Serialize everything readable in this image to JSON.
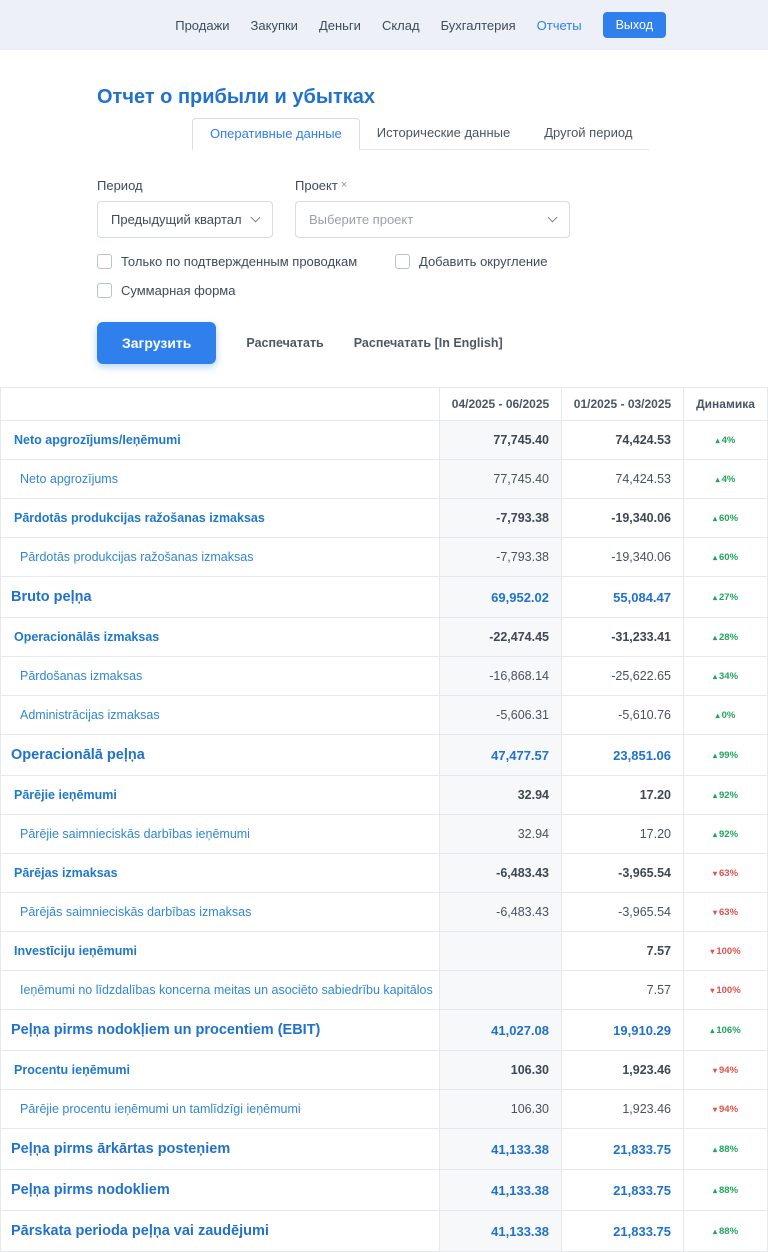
{
  "colors": {
    "accent": "#2f80ed",
    "title-blue": "#2072cc",
    "green": "#21a45d",
    "red": "#e2504a"
  },
  "nav": {
    "items": [
      {
        "label": "Продажи"
      },
      {
        "label": "Закупки"
      },
      {
        "label": "Деньги"
      },
      {
        "label": "Склад"
      },
      {
        "label": "Бухгалтерия"
      },
      {
        "label": "Отчеты"
      }
    ],
    "logout_label": "Выход"
  },
  "page": {
    "title": "Отчет о прибыли и убытках"
  },
  "tabs": [
    {
      "label": "Оперативные данные",
      "active": true
    },
    {
      "label": "Исторические данные",
      "active": false
    },
    {
      "label": "Другой период",
      "active": false
    }
  ],
  "filters": {
    "period_label": "Период",
    "period_value": "Предыдущий квартал",
    "project_label": "Проект",
    "project_clear": "×",
    "project_placeholder": "Выберите проект",
    "checkboxes": [
      {
        "label": "Только по подтвержденным проводкам",
        "checked": false
      },
      {
        "label": "Добавить округление",
        "checked": false
      },
      {
        "label": "Суммарная форма",
        "checked": false
      }
    ],
    "load_button": "Загрузить",
    "print_link": "Распечатать",
    "print_en_link": "Распечатать [In English]"
  },
  "table": {
    "headers": [
      "",
      "04/2025 - 06/2025",
      "01/2025 - 03/2025",
      "Динамика"
    ],
    "rows": [
      {
        "label": "Neto apgrozījums/Ieņēmumi",
        "level": "group",
        "col1": "77,745.40",
        "col2": "74,424.53",
        "trend": "4%",
        "dir": "up"
      },
      {
        "label": "Neto apgrozījums",
        "level": "sub",
        "col1": "77,745.40",
        "col2": "74,424.53",
        "trend": "4%",
        "dir": "up"
      },
      {
        "label": "Pārdotās produkcijas ražošanas izmaksas",
        "level": "group",
        "col1": "-7,793.38",
        "col2": "-19,340.06",
        "trend": "60%",
        "dir": "up"
      },
      {
        "label": "Pārdotās produkcijas ražošanas izmaksas",
        "level": "sub",
        "col1": "-7,793.38",
        "col2": "-19,340.06",
        "trend": "60%",
        "dir": "up"
      },
      {
        "label": "Bruto peļņa",
        "level": "total",
        "col1": "69,952.02",
        "col2": "55,084.47",
        "trend": "27%",
        "dir": "up"
      },
      {
        "label": "Operacionālās izmaksas",
        "level": "group",
        "col1": "-22,474.45",
        "col2": "-31,233.41",
        "trend": "28%",
        "dir": "up"
      },
      {
        "label": "Pārdošanas izmaksas",
        "level": "sub",
        "col1": "-16,868.14",
        "col2": "-25,622.65",
        "trend": "34%",
        "dir": "up"
      },
      {
        "label": "Administrācijas izmaksas",
        "level": "sub",
        "col1": "-5,606.31",
        "col2": "-5,610.76",
        "trend": "0%",
        "dir": "up"
      },
      {
        "label": "Operacionālā peļņa",
        "level": "total",
        "col1": "47,477.57",
        "col2": "23,851.06",
        "trend": "99%",
        "dir": "up"
      },
      {
        "label": "Pārējie ieņēmumi",
        "level": "group",
        "col1": "32.94",
        "col2": "17.20",
        "trend": "92%",
        "dir": "up"
      },
      {
        "label": "Pārējie saimnieciskās darbības ieņēmumi",
        "level": "sub",
        "col1": "32.94",
        "col2": "17.20",
        "trend": "92%",
        "dir": "up"
      },
      {
        "label": "Pārējas izmaksas",
        "level": "group",
        "col1": "-6,483.43",
        "col2": "-3,965.54",
        "trend": "63%",
        "dir": "down"
      },
      {
        "label": "Pārējās saimnieciskās darbības izmaksas",
        "level": "sub",
        "col1": "-6,483.43",
        "col2": "-3,965.54",
        "trend": "63%",
        "dir": "down"
      },
      {
        "label": "Investīciju ieņēmumi",
        "level": "group",
        "col1": "",
        "col2": "7.57",
        "trend": "100%",
        "dir": "down"
      },
      {
        "label": "Ieņēmumi no līdzdalības koncerna meitas un asociēto sabiedrību kapitālos",
        "level": "sub",
        "col1": "",
        "col2": "7.57",
        "trend": "100%",
        "dir": "down"
      },
      {
        "label": "Peļņa pirms nodokļiem un procentiem (EBIT)",
        "level": "total",
        "col1": "41,027.08",
        "col2": "19,910.29",
        "trend": "106%",
        "dir": "up"
      },
      {
        "label": "Procentu ieņēmumi",
        "level": "group",
        "col1": "106.30",
        "col2": "1,923.46",
        "trend": "94%",
        "dir": "down"
      },
      {
        "label": "Pārējie procentu ieņēmumi un tamlīdzīgi ieņēmumi",
        "level": "sub",
        "col1": "106.30",
        "col2": "1,923.46",
        "trend": "94%",
        "dir": "down"
      },
      {
        "label": "Peļņa pirms ārkārtas posteņiem",
        "level": "total",
        "col1": "41,133.38",
        "col2": "21,833.75",
        "trend": "88%",
        "dir": "up"
      },
      {
        "label": "Peļņa pirms nodokliem",
        "level": "total",
        "col1": "41,133.38",
        "col2": "21,833.75",
        "trend": "88%",
        "dir": "up"
      },
      {
        "label": "Pārskata perioda peļņa vai zaudējumi",
        "level": "total",
        "col1": "41,133.38",
        "col2": "21,833.75",
        "trend": "88%",
        "dir": "up"
      }
    ]
  }
}
